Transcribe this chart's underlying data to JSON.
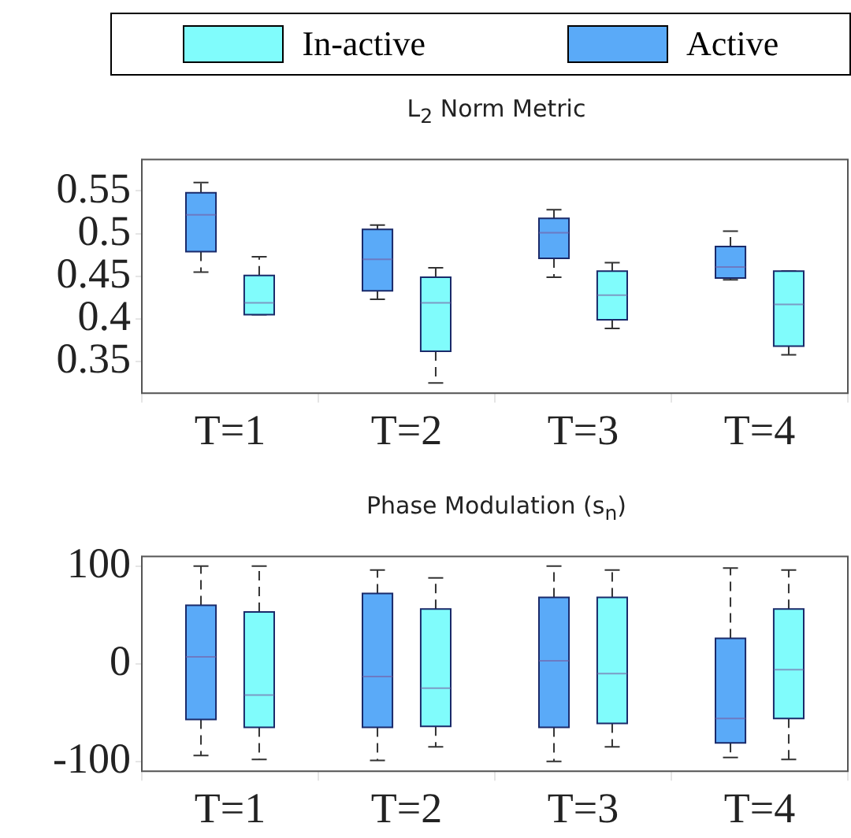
{
  "chart_data": [
    {
      "type": "box",
      "title": "L$_{2}$ Norm Metric",
      "categories": [
        "T=1",
        "T=2",
        "T=3",
        "T=4"
      ],
      "ylim": [
        0.313,
        0.587
      ],
      "yticks": [
        0.35,
        0.4,
        0.45,
        0.5,
        0.55
      ],
      "grid": false,
      "legend": "top",
      "series": [
        {
          "name": "In-active",
          "color": "#80fcfc",
          "boxes": [
            {
              "low": 0.405,
              "q1": 0.405,
              "median": 0.419,
              "q3": 0.451,
              "high": 0.473
            },
            {
              "low": 0.325,
              "q1": 0.362,
              "median": 0.419,
              "q3": 0.449,
              "high": 0.46
            },
            {
              "low": 0.389,
              "q1": 0.399,
              "median": 0.428,
              "q3": 0.456,
              "high": 0.466
            },
            {
              "low": 0.358,
              "q1": 0.368,
              "median": 0.417,
              "q3": 0.456,
              "high": 0.456
            }
          ]
        },
        {
          "name": "Active",
          "color": "#5aaaf8",
          "boxes": [
            {
              "low": 0.455,
              "q1": 0.479,
              "median": 0.522,
              "q3": 0.548,
              "high": 0.56
            },
            {
              "low": 0.423,
              "q1": 0.433,
              "median": 0.47,
              "q3": 0.505,
              "high": 0.51
            },
            {
              "low": 0.449,
              "q1": 0.471,
              "median": 0.501,
              "q3": 0.518,
              "high": 0.528
            },
            {
              "low": 0.446,
              "q1": 0.448,
              "median": 0.461,
              "q3": 0.485,
              "high": 0.503
            }
          ]
        }
      ]
    },
    {
      "type": "box",
      "title": "Phase Modulation (s$_{n}$)",
      "categories": [
        "T=1",
        "T=2",
        "T=3",
        "T=4"
      ],
      "ylim": [
        -110,
        110
      ],
      "yticks": [
        -100,
        0,
        100
      ],
      "grid": false,
      "series": [
        {
          "color": "#80fcfc",
          "boxes": [
            {
              "low": -98,
              "q1": -65,
              "median": -32,
              "q3": 53,
              "high": 100
            },
            {
              "low": -85,
              "q1": -64,
              "median": -25,
              "q3": 56,
              "high": 88
            },
            {
              "low": -85,
              "q1": -61,
              "median": -10,
              "q3": 68,
              "high": 96
            },
            {
              "low": -98,
              "q1": -56,
              "median": -6,
              "q3": 56,
              "high": 96
            }
          ]
        },
        {
          "color": "#5aaaf8",
          "boxes": [
            {
              "low": -94,
              "q1": -57,
              "median": 7,
              "q3": 60,
              "high": 100
            },
            {
              "low": -99,
              "q1": -65,
              "median": -13,
              "q3": 72,
              "high": 96
            },
            {
              "low": -100,
              "q1": -65,
              "median": 3,
              "q3": 68,
              "high": 100
            },
            {
              "low": -96,
              "q1": -81,
              "median": -56,
              "q3": 26,
              "high": 98
            }
          ]
        }
      ]
    }
  ]
}
